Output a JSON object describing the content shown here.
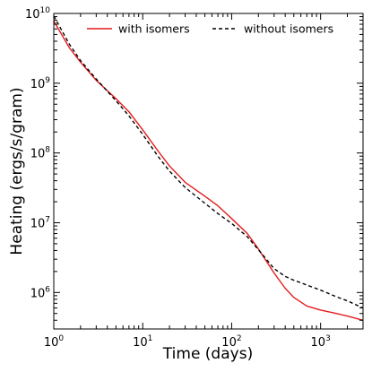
{
  "chart_data": {
    "type": "line",
    "xlabel": "Time (days)",
    "ylabel": "Heating (ergs/s/gram)",
    "xscale": "log",
    "yscale": "log",
    "xlim": [
      1,
      3000
    ],
    "ylim": [
      300000,
      10000000000
    ],
    "grid": false,
    "legend_position": "top",
    "x_ticks": [
      {
        "value": 1,
        "base": "10",
        "exp": "0"
      },
      {
        "value": 10,
        "base": "10",
        "exp": "1"
      },
      {
        "value": 100,
        "base": "10",
        "exp": "2"
      },
      {
        "value": 1000,
        "base": "10",
        "exp": "3"
      }
    ],
    "y_ticks": [
      {
        "value": 1000000,
        "base": "10",
        "exp": "6"
      },
      {
        "value": 10000000,
        "base": "10",
        "exp": "7"
      },
      {
        "value": 100000000,
        "base": "10",
        "exp": "8"
      },
      {
        "value": 1000000000,
        "base": "10",
        "exp": "9"
      },
      {
        "value": 10000000000,
        "base": "10",
        "exp": "10"
      }
    ],
    "series": [
      {
        "name": "with isomers",
        "color": "#e41a1c",
        "style": "solid",
        "x": [
          1,
          1.5,
          2,
          3,
          5,
          7,
          10,
          15,
          20,
          30,
          50,
          70,
          100,
          150,
          200,
          300,
          400,
          500,
          700,
          1000,
          1500,
          2000,
          3000
        ],
        "y": [
          7800000000,
          3200000000,
          2000000000,
          1100000000,
          600000000,
          390000000,
          215000000,
          105000000,
          65000000,
          38000000,
          24000000,
          17500000,
          11500000,
          7000000,
          4200000,
          1900000,
          1150000,
          850000,
          640000,
          560000,
          500000,
          460000,
          400000
        ]
      },
      {
        "name": "without isomers",
        "color": "#000000",
        "style": "dashed",
        "x": [
          1,
          1.5,
          2,
          3,
          5,
          7,
          10,
          15,
          20,
          30,
          50,
          70,
          100,
          150,
          200,
          300,
          400,
          500,
          700,
          1000,
          1500,
          2000,
          3000
        ],
        "y": [
          9200000000,
          3600000000,
          2100000000,
          1150000000,
          560000000,
          340000000,
          185000000,
          88000000,
          55000000,
          32000000,
          19000000,
          13500000,
          9800000,
          6300000,
          4100000,
          2200000,
          1700000,
          1500000,
          1280000,
          1080000,
          870000,
          760000,
          600000
        ]
      }
    ]
  }
}
